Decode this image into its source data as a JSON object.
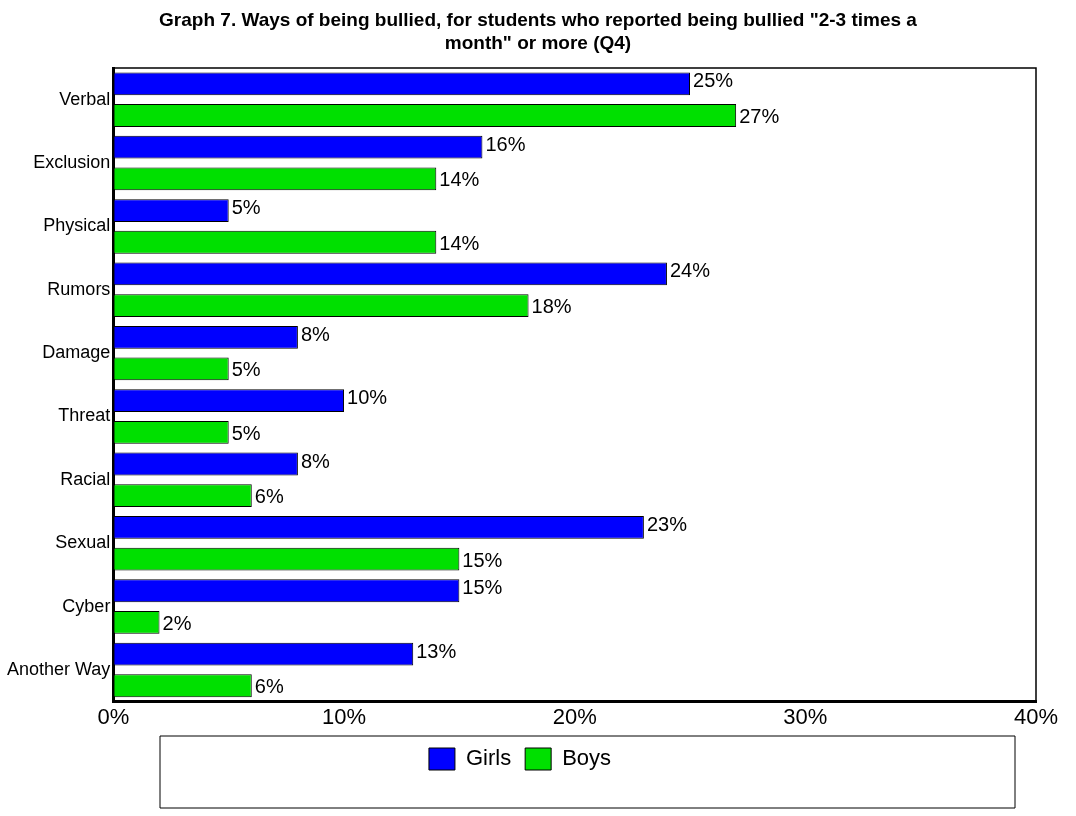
{
  "chart_data": {
    "type": "bar",
    "orientation": "horizontal",
    "title": "Graph 7. Ways of being bullied, for students who reported being bullied  \"2-3 times a month\" or more (Q4)",
    "categories": [
      "Verbal",
      "Exclusion",
      "Physical",
      "Rumors",
      "Damage",
      "Threat",
      "Racial",
      "Sexual",
      "Cyber",
      "Another Way"
    ],
    "series": [
      {
        "name": "Girls",
        "color": "#0000ff",
        "values": [
          25,
          16,
          5,
          24,
          8,
          10,
          8,
          23,
          15,
          13
        ],
        "value_labels": [
          "25%",
          "16%",
          "5%",
          "24%",
          "8%",
          "10%",
          "8%",
          "23%",
          "15%",
          "13%"
        ]
      },
      {
        "name": "Boys",
        "color": "#00e000",
        "values": [
          27,
          14,
          14,
          18,
          5,
          5,
          6,
          15,
          2,
          6
        ],
        "value_labels": [
          "27%",
          "14%",
          "14%",
          "18%",
          "5%",
          "5%",
          "6%",
          "15%",
          "2%",
          "6%"
        ]
      }
    ],
    "xlim": [
      0,
      40
    ],
    "xticks": [
      {
        "value": 0,
        "label": "0%"
      },
      {
        "value": 10,
        "label": "10%"
      },
      {
        "value": 20,
        "label": "20%"
      },
      {
        "value": 30,
        "label": "30%"
      },
      {
        "value": 40,
        "label": "40%"
      }
    ],
    "grid": false,
    "legend": "bottom"
  }
}
